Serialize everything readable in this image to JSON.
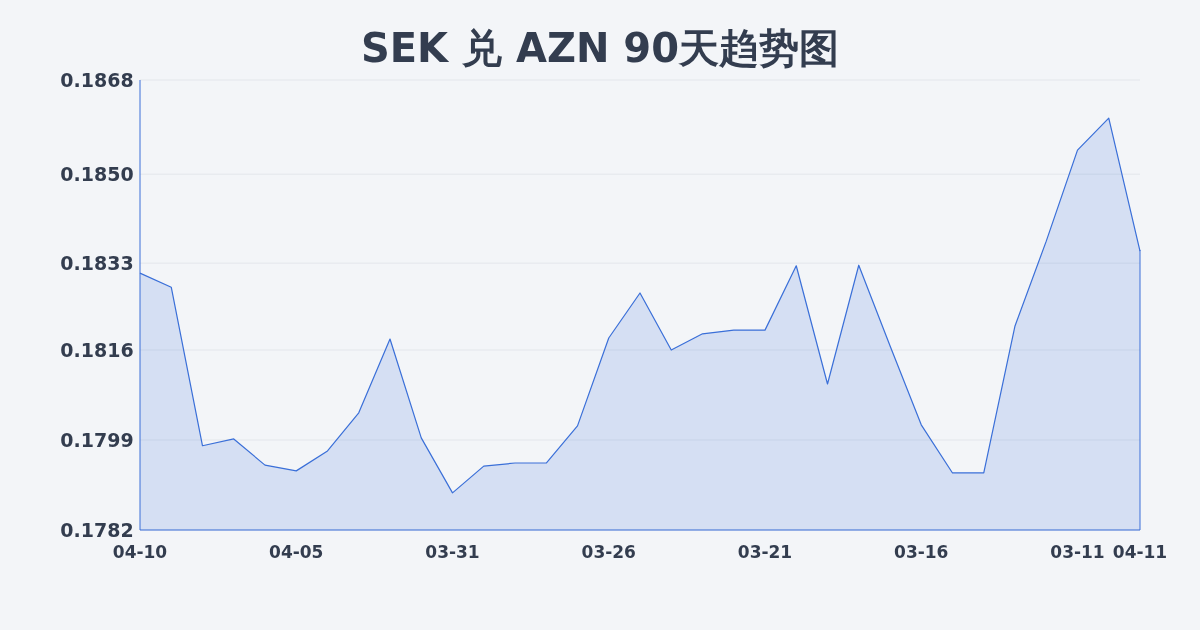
{
  "chart_data": {
    "type": "area",
    "title": "SEK 兑 AZN 90天趋势图",
    "categories": [
      "04-10",
      null,
      null,
      null,
      null,
      "04-05",
      null,
      null,
      null,
      null,
      "03-31",
      null,
      null,
      null,
      null,
      "03-26",
      null,
      null,
      null,
      null,
      "03-21",
      null,
      null,
      null,
      null,
      "03-16",
      null,
      null,
      null,
      null,
      "03-11",
      null,
      "04-11"
    ],
    "values": [
      0.18311,
      0.18284,
      0.17981,
      0.17994,
      0.17944,
      0.17933,
      0.17971,
      0.18044,
      0.18185,
      0.17996,
      0.17891,
      0.17942,
      0.17948,
      0.17948,
      0.18019,
      0.18187,
      0.18273,
      0.18164,
      0.18195,
      0.18202,
      0.18202,
      0.18325,
      0.18099,
      0.18326,
      0.18172,
      0.18021,
      0.17929,
      0.17929,
      0.1821,
      0.18372,
      0.18546,
      0.18607,
      0.18353
    ],
    "color": "#3a6fd8",
    "ylim": [
      0.1782,
      0.1868
    ],
    "yticks": [
      0.1782,
      {
        "value": 0.17992,
        "label": "0.1799"
      },
      {
        "value": 0.18164,
        "label": "0.1816"
      },
      0.1833,
      {
        "value": 0.185,
        "label": "0.1850"
      },
      0.1868
    ],
    "grid": "y",
    "marker": "none",
    "line_style": "solid"
  }
}
